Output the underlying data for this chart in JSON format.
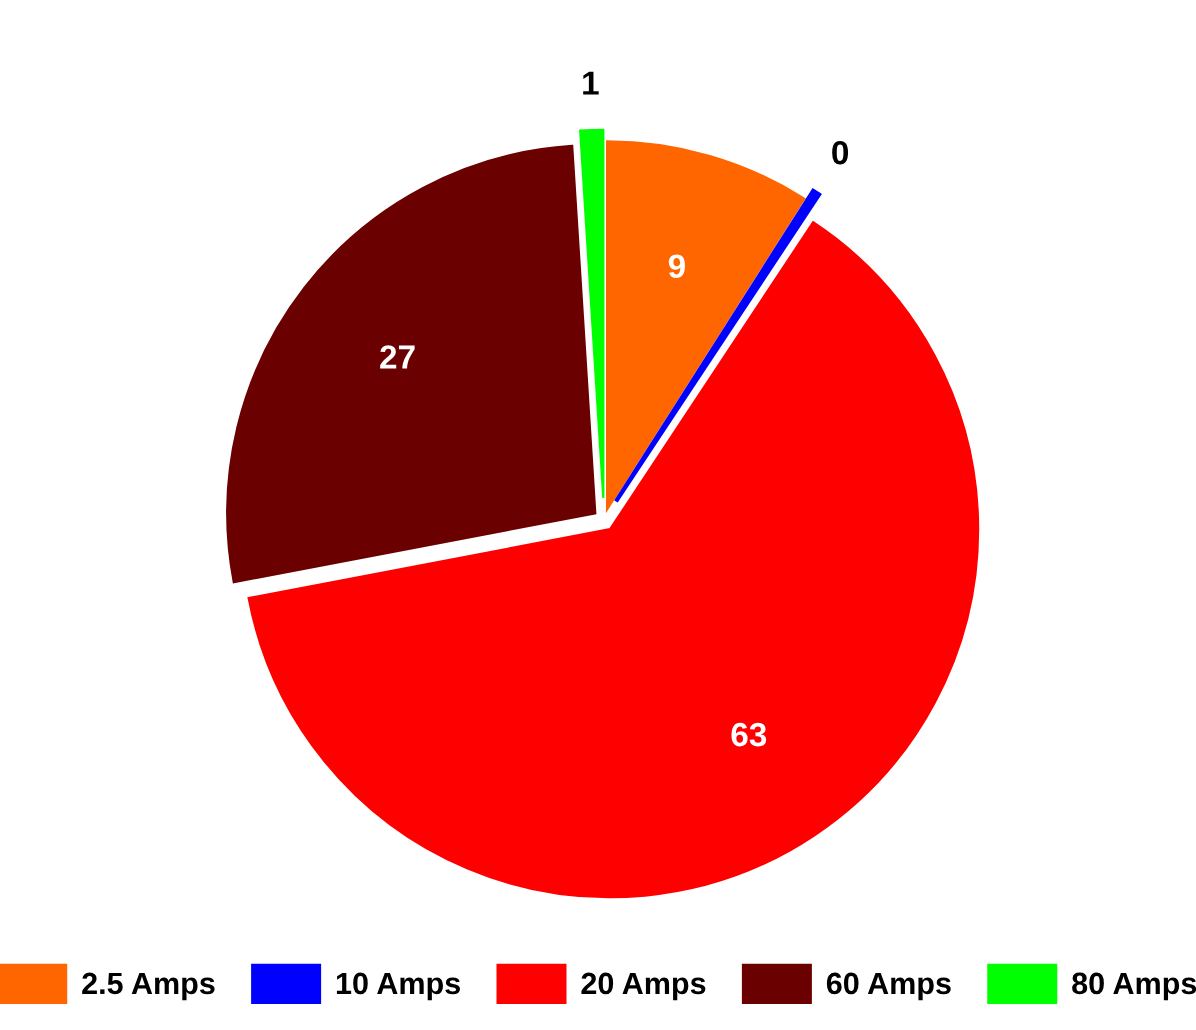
{
  "chart_data": {
    "type": "pie",
    "categories": [
      "2.5 Amps",
      "10 Amps",
      "20 Amps",
      "60 Amps",
      "80 Amps"
    ],
    "values": [
      9,
      0.3,
      62.7,
      27,
      1
    ],
    "value_labels": [
      "9",
      "0",
      "63",
      "27",
      "1"
    ],
    "colors": [
      "#ff6600",
      "#0000ff",
      "#ff0000",
      "#6b0000",
      "#00ff00"
    ],
    "legend": "bottom"
  }
}
